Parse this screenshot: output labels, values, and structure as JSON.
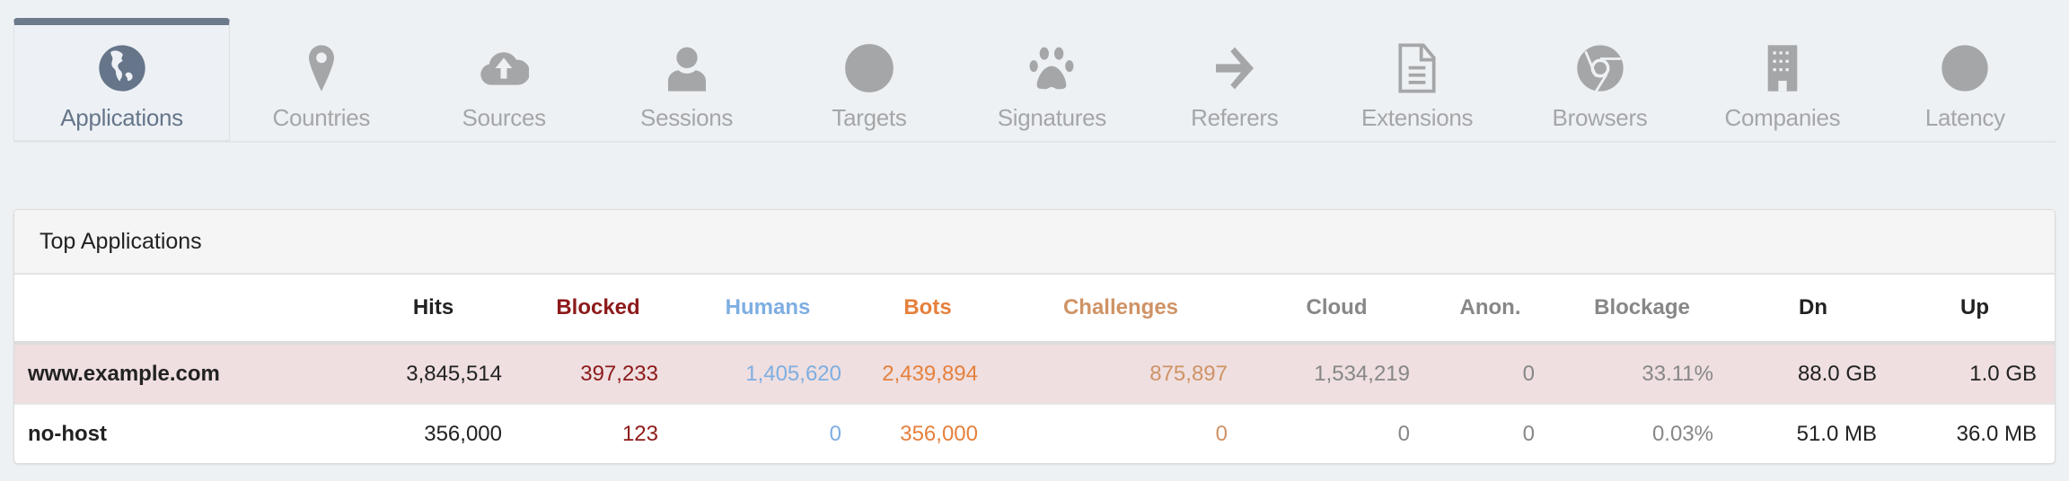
{
  "tabs": [
    {
      "label": "Applications",
      "icon": "globe-icon",
      "active": true
    },
    {
      "label": "Countries",
      "icon": "map-pin-icon"
    },
    {
      "label": "Sources",
      "icon": "cloud-upload-icon"
    },
    {
      "label": "Sessions",
      "icon": "user-icon"
    },
    {
      "label": "Targets",
      "icon": "target-icon"
    },
    {
      "label": "Signatures",
      "icon": "paw-icon"
    },
    {
      "label": "Referers",
      "icon": "arrow-right-icon"
    },
    {
      "label": "Extensions",
      "icon": "file-icon"
    },
    {
      "label": "Browsers",
      "icon": "chrome-icon"
    },
    {
      "label": "Companies",
      "icon": "building-icon"
    },
    {
      "label": "Latency",
      "icon": "clock-icon"
    }
  ],
  "panel": {
    "title": "Top Applications",
    "columns": [
      "",
      "Hits",
      "Blocked",
      "Humans",
      "Bots",
      "Challenges",
      "Cloud",
      "Anon.",
      "Blockage",
      "Dn",
      "Up"
    ],
    "rows": [
      [
        "www.example.com",
        "3,845,514",
        "397,233",
        "1,405,620",
        "2,439,894",
        "875,897",
        "1,534,219",
        "0",
        "33.11%",
        "88.0 GB",
        "1.0 GB"
      ],
      [
        "no-host",
        "356,000",
        "123",
        "0",
        "356,000",
        "0",
        "0",
        "0",
        "0.03%",
        "51.0 MB",
        "36.0 MB"
      ]
    ],
    "highlighted_row": 0
  },
  "colors": {
    "active_tab": "#6d7a8c",
    "blocked": "#8d1a1a",
    "humans": "#7eaee2",
    "bots": "#e5803d",
    "challenges": "#cf9366",
    "highlight_row": "#efdfe0"
  }
}
